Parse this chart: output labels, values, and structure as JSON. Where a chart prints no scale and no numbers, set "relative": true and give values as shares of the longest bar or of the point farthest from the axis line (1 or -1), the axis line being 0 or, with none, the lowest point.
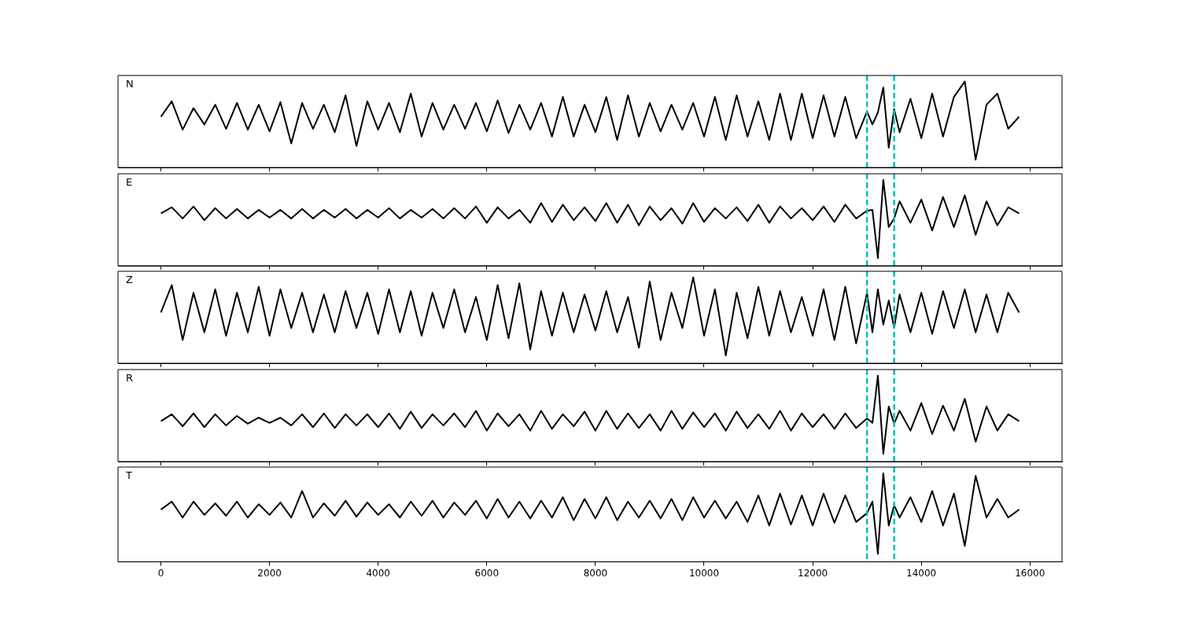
{
  "chart_data": [
    {
      "type": "line",
      "relative": true,
      "annotations": [
        "N"
      ],
      "tick_labels": false,
      "marker": "none",
      "xlim": [
        -790,
        16590
      ],
      "xticks": [
        0,
        2000,
        4000,
        6000,
        8000,
        10000,
        12000,
        14000,
        16000
      ],
      "x": [
        0,
        200,
        400,
        600,
        800,
        1000,
        1200,
        1400,
        1600,
        1800,
        2000,
        2200,
        2400,
        2600,
        2800,
        3000,
        3200,
        3400,
        3600,
        3800,
        4000,
        4200,
        4400,
        4600,
        4800,
        5000,
        5200,
        5400,
        5600,
        5800,
        6000,
        6200,
        6400,
        6600,
        6800,
        7000,
        7200,
        7400,
        7600,
        7800,
        8000,
        8200,
        8400,
        8600,
        8800,
        9000,
        9200,
        9400,
        9600,
        9800,
        10000,
        10200,
        10400,
        10600,
        10800,
        11000,
        11200,
        11400,
        11600,
        11800,
        12000,
        12200,
        12400,
        12600,
        12800,
        13000,
        13100,
        13200,
        13300,
        13400,
        13500,
        13600,
        13800,
        14000,
        14200,
        14400,
        14600,
        14800,
        15000,
        15200,
        15400,
        15600,
        15800
      ],
      "series": [
        {
          "color": "#000000",
          "values": [
            0.59,
            0.77,
            0.44,
            0.69,
            0.5,
            0.73,
            0.45,
            0.75,
            0.44,
            0.73,
            0.42,
            0.76,
            0.28,
            0.75,
            0.45,
            0.73,
            0.41,
            0.84,
            0.25,
            0.77,
            0.44,
            0.75,
            0.41,
            0.86,
            0.36,
            0.75,
            0.44,
            0.73,
            0.45,
            0.75,
            0.42,
            0.78,
            0.4,
            0.73,
            0.44,
            0.75,
            0.36,
            0.82,
            0.36,
            0.73,
            0.41,
            0.82,
            0.32,
            0.84,
            0.36,
            0.75,
            0.42,
            0.73,
            0.44,
            0.75,
            0.36,
            0.82,
            0.32,
            0.84,
            0.36,
            0.77,
            0.32,
            0.86,
            0.32,
            0.86,
            0.34,
            0.84,
            0.36,
            0.82,
            0.34,
            0.65,
            0.5,
            0.64,
            0.93,
            0.23,
            0.68,
            0.41,
            0.8,
            0.34,
            0.86,
            0.36,
            0.82,
            1,
            0.09,
            0.73,
            0.86,
            0.45,
            0.59
          ]
        }
      ],
      "ref_lines": [
        {
          "axis": "x",
          "value": 13000,
          "color": "#00bfbf",
          "line_style": "dashed"
        },
        {
          "axis": "x",
          "value": 13500,
          "color": "#00bfbf",
          "line_style": "dashed"
        }
      ]
    },
    {
      "type": "line",
      "relative": true,
      "annotations": [
        "E"
      ],
      "tick_labels": false,
      "marker": "none",
      "xlim": [
        -790,
        16590
      ],
      "xticks": [
        0,
        2000,
        4000,
        6000,
        8000,
        10000,
        12000,
        14000,
        16000
      ],
      "x": [
        0,
        200,
        400,
        600,
        800,
        1000,
        1200,
        1400,
        1600,
        1800,
        2000,
        2200,
        2400,
        2600,
        2800,
        3000,
        3200,
        3400,
        3600,
        3800,
        4000,
        4200,
        4400,
        4600,
        4800,
        5000,
        5200,
        5400,
        5600,
        5800,
        6000,
        6200,
        6400,
        6600,
        6800,
        7000,
        7200,
        7400,
        7600,
        7800,
        8000,
        8200,
        8400,
        8600,
        8800,
        9000,
        9200,
        9400,
        9600,
        9800,
        10000,
        10200,
        10400,
        10600,
        10800,
        11000,
        11200,
        11400,
        11600,
        11800,
        12000,
        12200,
        12400,
        12600,
        12800,
        13000,
        13100,
        13200,
        13300,
        13400,
        13500,
        13600,
        13800,
        14000,
        14200,
        14400,
        14600,
        14800,
        15000,
        15200,
        15400,
        15600,
        15800
      ],
      "series": [
        {
          "color": "#000000",
          "values": [
            0.61,
            0.68,
            0.55,
            0.69,
            0.53,
            0.67,
            0.55,
            0.66,
            0.55,
            0.65,
            0.56,
            0.65,
            0.55,
            0.66,
            0.55,
            0.65,
            0.56,
            0.66,
            0.55,
            0.65,
            0.56,
            0.67,
            0.55,
            0.65,
            0.56,
            0.66,
            0.55,
            0.67,
            0.55,
            0.69,
            0.5,
            0.68,
            0.55,
            0.65,
            0.5,
            0.73,
            0.51,
            0.71,
            0.53,
            0.68,
            0.52,
            0.73,
            0.5,
            0.71,
            0.47,
            0.69,
            0.53,
            0.67,
            0.49,
            0.73,
            0.51,
            0.67,
            0.55,
            0.68,
            0.52,
            0.71,
            0.5,
            0.69,
            0.55,
            0.67,
            0.53,
            0.69,
            0.51,
            0.71,
            0.55,
            0.64,
            0.65,
            0.09,
            1,
            0.45,
            0.55,
            0.75,
            0.5,
            0.77,
            0.41,
            0.8,
            0.45,
            0.82,
            0.36,
            0.75,
            0.47,
            0.68,
            0.61
          ]
        }
      ],
      "ref_lines": [
        {
          "axis": "x",
          "value": 13000,
          "color": "#00bfbf",
          "line_style": "dashed"
        },
        {
          "axis": "x",
          "value": 13500,
          "color": "#00bfbf",
          "line_style": "dashed"
        }
      ]
    },
    {
      "type": "line",
      "relative": true,
      "annotations": [
        "Z"
      ],
      "tick_labels": false,
      "marker": "none",
      "xlim": [
        -790,
        16590
      ],
      "xticks": [
        0,
        2000,
        4000,
        6000,
        8000,
        10000,
        12000,
        14000,
        16000
      ],
      "x": [
        0,
        200,
        400,
        600,
        800,
        1000,
        1200,
        1400,
        1600,
        1800,
        2000,
        2200,
        2400,
        2600,
        2800,
        3000,
        3200,
        3400,
        3600,
        3800,
        4000,
        4200,
        4400,
        4600,
        4800,
        5000,
        5200,
        5400,
        5600,
        5800,
        6000,
        6200,
        6400,
        6600,
        6800,
        7000,
        7200,
        7400,
        7600,
        7800,
        8000,
        8200,
        8400,
        8600,
        8800,
        9000,
        9200,
        9400,
        9600,
        9800,
        10000,
        10200,
        10400,
        10600,
        10800,
        11000,
        11200,
        11400,
        11600,
        11800,
        12000,
        12200,
        12400,
        12600,
        12800,
        13000,
        13100,
        13200,
        13300,
        13400,
        13500,
        13600,
        13800,
        14000,
        14200,
        14400,
        14600,
        14800,
        15000,
        15200,
        15400,
        15600,
        15800
      ],
      "series": [
        {
          "color": "#000000",
          "values": [
            0.59,
            0.91,
            0.27,
            0.82,
            0.36,
            0.86,
            0.32,
            0.82,
            0.36,
            0.89,
            0.32,
            0.86,
            0.41,
            0.82,
            0.36,
            0.8,
            0.36,
            0.84,
            0.41,
            0.82,
            0.34,
            0.86,
            0.36,
            0.84,
            0.32,
            0.82,
            0.41,
            0.86,
            0.36,
            0.77,
            0.27,
            0.91,
            0.29,
            0.93,
            0.16,
            0.84,
            0.32,
            0.82,
            0.36,
            0.8,
            0.38,
            0.84,
            0.36,
            0.77,
            0.18,
            0.95,
            0.27,
            0.82,
            0.41,
            1,
            0.32,
            0.86,
            0.09,
            0.82,
            0.29,
            0.89,
            0.32,
            0.84,
            0.36,
            0.77,
            0.32,
            0.86,
            0.27,
            0.89,
            0.23,
            0.82,
            0.36,
            0.86,
            0.45,
            0.73,
            0.41,
            0.8,
            0.36,
            0.82,
            0.34,
            0.84,
            0.41,
            0.86,
            0.36,
            0.8,
            0.36,
            0.82,
            0.59
          ]
        }
      ],
      "ref_lines": [
        {
          "axis": "x",
          "value": 13000,
          "color": "#00bfbf",
          "line_style": "dashed"
        },
        {
          "axis": "x",
          "value": 13500,
          "color": "#00bfbf",
          "line_style": "dashed"
        }
      ]
    },
    {
      "type": "line",
      "relative": true,
      "annotations": [
        "R"
      ],
      "tick_labels": false,
      "marker": "none",
      "xlim": [
        -790,
        16590
      ],
      "xticks": [
        0,
        2000,
        4000,
        6000,
        8000,
        10000,
        12000,
        14000,
        16000
      ],
      "x": [
        0,
        200,
        400,
        600,
        800,
        1000,
        1200,
        1400,
        1600,
        1800,
        2000,
        2200,
        2400,
        2600,
        2800,
        3000,
        3200,
        3400,
        3600,
        3800,
        4000,
        4200,
        4400,
        4600,
        4800,
        5000,
        5200,
        5400,
        5600,
        5800,
        6000,
        6200,
        6400,
        6600,
        6800,
        7000,
        7200,
        7400,
        7600,
        7800,
        8000,
        8200,
        8400,
        8600,
        8800,
        9000,
        9200,
        9400,
        9600,
        9800,
        10000,
        10200,
        10400,
        10600,
        10800,
        11000,
        11200,
        11400,
        11600,
        11800,
        12000,
        12200,
        12400,
        12600,
        12800,
        13000,
        13100,
        13200,
        13300,
        13400,
        13500,
        13600,
        13800,
        14000,
        14200,
        14400,
        14600,
        14800,
        15000,
        15200,
        15400,
        15600,
        15800
      ],
      "series": [
        {
          "color": "#000000",
          "values": [
            0.47,
            0.55,
            0.41,
            0.56,
            0.4,
            0.55,
            0.42,
            0.53,
            0.44,
            0.51,
            0.45,
            0.51,
            0.42,
            0.55,
            0.4,
            0.56,
            0.39,
            0.55,
            0.42,
            0.55,
            0.4,
            0.56,
            0.38,
            0.58,
            0.39,
            0.55,
            0.42,
            0.56,
            0.4,
            0.59,
            0.36,
            0.56,
            0.41,
            0.55,
            0.36,
            0.59,
            0.38,
            0.55,
            0.41,
            0.58,
            0.36,
            0.59,
            0.38,
            0.56,
            0.39,
            0.55,
            0.36,
            0.59,
            0.38,
            0.57,
            0.4,
            0.56,
            0.36,
            0.58,
            0.39,
            0.55,
            0.38,
            0.59,
            0.36,
            0.56,
            0.4,
            0.55,
            0.38,
            0.56,
            0.39,
            0.5,
            0.45,
            1,
            0.09,
            0.64,
            0.44,
            0.59,
            0.36,
            0.68,
            0.32,
            0.65,
            0.36,
            0.73,
            0.23,
            0.64,
            0.36,
            0.55,
            0.47
          ]
        }
      ],
      "ref_lines": [
        {
          "axis": "x",
          "value": 13000,
          "color": "#00bfbf",
          "line_style": "dashed"
        },
        {
          "axis": "x",
          "value": 13500,
          "color": "#00bfbf",
          "line_style": "dashed"
        }
      ]
    },
    {
      "type": "line",
      "relative": true,
      "annotations": [
        "T"
      ],
      "tick_labels": "x",
      "marker": "none",
      "xlim": [
        -790,
        16590
      ],
      "xticks": [
        0,
        2000,
        4000,
        6000,
        8000,
        10000,
        12000,
        14000,
        16000
      ],
      "x": [
        0,
        200,
        400,
        600,
        800,
        1000,
        1200,
        1400,
        1600,
        1800,
        2000,
        2200,
        2400,
        2600,
        2800,
        3000,
        3200,
        3400,
        3600,
        3800,
        4000,
        4200,
        4400,
        4600,
        4800,
        5000,
        5200,
        5400,
        5600,
        5800,
        6000,
        6200,
        6400,
        6600,
        6800,
        7000,
        7200,
        7400,
        7600,
        7800,
        8000,
        8200,
        8400,
        8600,
        8800,
        9000,
        9200,
        9400,
        9600,
        9800,
        10000,
        10200,
        10400,
        10600,
        10800,
        11000,
        11200,
        11400,
        11600,
        11800,
        12000,
        12200,
        12400,
        12600,
        12800,
        13000,
        13100,
        13200,
        13300,
        13400,
        13500,
        13600,
        13800,
        14000,
        14200,
        14400,
        14600,
        14800,
        15000,
        15200,
        15400,
        15600,
        15800
      ],
      "series": [
        {
          "color": "#000000",
          "values": [
            0.59,
            0.68,
            0.5,
            0.68,
            0.53,
            0.66,
            0.52,
            0.68,
            0.5,
            0.65,
            0.53,
            0.67,
            0.5,
            0.8,
            0.5,
            0.66,
            0.52,
            0.69,
            0.51,
            0.67,
            0.53,
            0.65,
            0.5,
            0.68,
            0.52,
            0.69,
            0.5,
            0.67,
            0.53,
            0.69,
            0.49,
            0.71,
            0.5,
            0.68,
            0.49,
            0.69,
            0.5,
            0.73,
            0.47,
            0.71,
            0.49,
            0.73,
            0.47,
            0.68,
            0.5,
            0.69,
            0.49,
            0.71,
            0.47,
            0.73,
            0.5,
            0.69,
            0.49,
            0.68,
            0.45,
            0.75,
            0.41,
            0.77,
            0.42,
            0.75,
            0.41,
            0.77,
            0.44,
            0.75,
            0.45,
            0.55,
            0.68,
            0.09,
            1,
            0.41,
            0.64,
            0.5,
            0.73,
            0.45,
            0.8,
            0.41,
            0.77,
            0.18,
            0.97,
            0.5,
            0.71,
            0.5,
            0.59
          ]
        }
      ],
      "ref_lines": [
        {
          "axis": "x",
          "value": 13000,
          "color": "#00bfbf",
          "line_style": "dashed"
        },
        {
          "axis": "x",
          "value": 13500,
          "color": "#00bfbf",
          "line_style": "dashed"
        }
      ]
    }
  ]
}
